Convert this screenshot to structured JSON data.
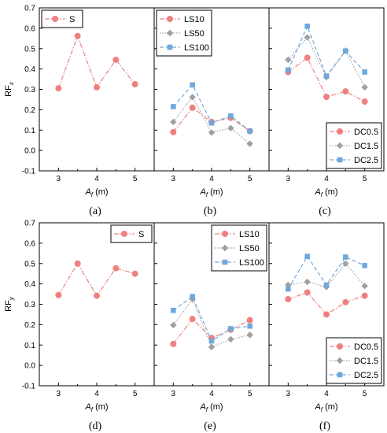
{
  "styles": {
    "S": {
      "color": "#f08080",
      "marker": "circle",
      "dash": "6 2 1.5 2"
    },
    "LS10": {
      "color": "#f08080",
      "marker": "circle",
      "dash": "6 2 1.5 2"
    },
    "LS50": {
      "color": "#a0a0a0",
      "marker": "diamond",
      "dash": "1.5 2"
    },
    "LS100": {
      "color": "#6fa8dc",
      "marker": "square",
      "dash": "5 3"
    },
    "DC0.5": {
      "color": "#f08080",
      "marker": "circle",
      "dash": "6 2 1.5 2"
    },
    "DC1.5": {
      "color": "#a0a0a0",
      "marker": "diamond",
      "dash": "1.5 2"
    },
    "DC2.5": {
      "color": "#6fa8dc",
      "marker": "square",
      "dash": "5 3"
    }
  },
  "rows": [
    {
      "ylabel_main": "RF",
      "ylabel_sub": "x"
    },
    {
      "ylabel_main": "RF",
      "ylabel_sub": "y"
    }
  ],
  "xlabel_main": "A",
  "xlabel_sub": "f",
  "xlabel_unit": " (m)",
  "x_ticks": [
    "3",
    "4",
    "5"
  ],
  "y_ticks": [
    "-0.1",
    "0.0",
    "0.1",
    "0.2",
    "0.3",
    "0.4",
    "0.5",
    "0.6",
    "0.7"
  ],
  "chart_data": [
    {
      "type": "line",
      "panel_label": "(a)",
      "x": [
        3,
        3.5,
        4,
        4.5,
        5
      ],
      "xlim": [
        2.5,
        5.5
      ],
      "ylim": [
        -0.1,
        0.7
      ],
      "legend_position": "top-left",
      "series": [
        {
          "name": "S",
          "values": [
            0.305,
            0.562,
            0.31,
            0.445,
            0.325
          ]
        }
      ]
    },
    {
      "type": "line",
      "panel_label": "(b)",
      "x": [
        3,
        3.5,
        4,
        4.5,
        5
      ],
      "xlim": [
        2.5,
        5.5
      ],
      "ylim": [
        -0.1,
        0.7
      ],
      "legend_position": "top-left",
      "series": [
        {
          "name": "LS10",
          "values": [
            0.09,
            0.21,
            0.14,
            0.16,
            0.095
          ]
        },
        {
          "name": "LS50",
          "values": [
            0.14,
            0.262,
            0.088,
            0.11,
            0.033
          ]
        },
        {
          "name": "LS100",
          "values": [
            0.215,
            0.322,
            0.135,
            0.17,
            0.095
          ]
        }
      ]
    },
    {
      "type": "line",
      "panel_label": "(c)",
      "x": [
        3,
        3.5,
        4,
        4.5,
        5
      ],
      "xlim": [
        2.5,
        5.5
      ],
      "ylim": [
        -0.1,
        0.7
      ],
      "legend_position": "bottom-right",
      "series": [
        {
          "name": "DC0.5",
          "values": [
            0.385,
            0.455,
            0.263,
            0.29,
            0.24
          ]
        },
        {
          "name": "DC1.5",
          "values": [
            0.445,
            0.555,
            0.36,
            0.49,
            0.31
          ]
        },
        {
          "name": "DC2.5",
          "values": [
            0.395,
            0.61,
            0.365,
            0.488,
            0.385
          ]
        }
      ]
    },
    {
      "type": "line",
      "panel_label": "(d)",
      "x": [
        3,
        3.5,
        4,
        4.5,
        5
      ],
      "xlim": [
        2.5,
        5.5
      ],
      "ylim": [
        -0.1,
        0.7
      ],
      "legend_position": "top-right",
      "series": [
        {
          "name": "S",
          "values": [
            0.345,
            0.5,
            0.342,
            0.477,
            0.45
          ]
        }
      ]
    },
    {
      "type": "line",
      "panel_label": "(e)",
      "x": [
        3,
        3.5,
        4,
        4.5,
        5
      ],
      "xlim": [
        2.5,
        5.5
      ],
      "ylim": [
        -0.1,
        0.7
      ],
      "legend_position": "top-right",
      "series": [
        {
          "name": "LS10",
          "values": [
            0.105,
            0.228,
            0.135,
            0.175,
            0.222
          ]
        },
        {
          "name": "LS50",
          "values": [
            0.198,
            0.325,
            0.09,
            0.128,
            0.15
          ]
        },
        {
          "name": "LS100",
          "values": [
            0.27,
            0.338,
            0.12,
            0.18,
            0.193
          ]
        }
      ]
    },
    {
      "type": "line",
      "panel_label": "(f)",
      "x": [
        3,
        3.5,
        4,
        4.5,
        5
      ],
      "xlim": [
        2.5,
        5.5
      ],
      "ylim": [
        -0.1,
        0.7
      ],
      "legend_position": "bottom-right",
      "series": [
        {
          "name": "DC0.5",
          "values": [
            0.325,
            0.358,
            0.25,
            0.31,
            0.342
          ]
        },
        {
          "name": "DC1.5",
          "values": [
            0.395,
            0.41,
            0.385,
            0.5,
            0.39
          ]
        },
        {
          "name": "DC2.5",
          "values": [
            0.375,
            0.535,
            0.395,
            0.532,
            0.49
          ]
        }
      ]
    }
  ]
}
